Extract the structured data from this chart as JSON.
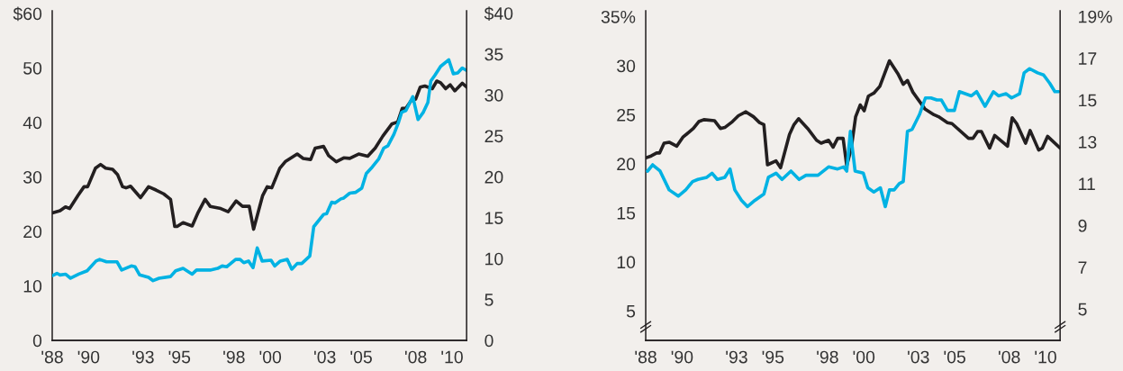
{
  "chart_data": [
    {
      "type": "line",
      "xlim": [
        1988,
        2010.8
      ],
      "xticks": [
        {
          "value": 1988,
          "label": "'88"
        },
        {
          "value": 1990,
          "label": "'90"
        },
        {
          "value": 1993,
          "label": "'93"
        },
        {
          "value": 1995,
          "label": "'95"
        },
        {
          "value": 1998,
          "label": "'98"
        },
        {
          "value": 2000,
          "label": "'00"
        },
        {
          "value": 2003,
          "label": "'03"
        },
        {
          "value": 2005,
          "label": "'05"
        },
        {
          "value": 2008,
          "label": "'08"
        },
        {
          "value": 2010,
          "label": "'10"
        }
      ],
      "ylim": [
        0,
        60.5
      ],
      "yticks": [
        0,
        10,
        20,
        30,
        40,
        50,
        {
          "value": 60,
          "label": "$60"
        }
      ],
      "y2lim": [
        0,
        40.3
      ],
      "y2ticks": [
        0,
        5,
        10,
        15,
        20,
        25,
        30,
        35,
        {
          "value": 40,
          "label": "$40"
        }
      ],
      "series": [
        {
          "color": "#00b2e3",
          "axis": "y2",
          "x": [
            1988.0,
            1988.26,
            1988.43,
            1988.73,
            1989.01,
            1989.46,
            1989.92,
            1990.41,
            1990.61,
            1990.99,
            1991.57,
            1991.82,
            1992.35,
            1992.56,
            1992.81,
            1993.3,
            1993.55,
            1993.88,
            1994.51,
            1994.79,
            1995.2,
            1995.7,
            1995.94,
            1996.69,
            1997.1,
            1997.35,
            1997.6,
            1998.09,
            1998.34,
            1998.54,
            1998.8,
            1999.05,
            1999.28,
            1999.55,
            2000.04,
            2000.24,
            2000.55,
            2000.93,
            2001.18,
            2001.48,
            2001.73,
            2002.17,
            2002.39,
            2002.93,
            2003.1,
            2003.38,
            2003.55,
            2003.88,
            2004.04,
            2004.37,
            2004.7,
            2005.03,
            2005.28,
            2005.61,
            2005.97,
            2006.24,
            2006.47,
            2006.8,
            2007.06,
            2007.23,
            2007.46,
            2007.84,
            2008.13,
            2008.42,
            2008.67,
            2008.83,
            2009.05,
            2009.37,
            2009.82,
            2010.07,
            2010.31,
            2010.56,
            2010.8
          ],
          "values": [
            7.9,
            8.2,
            8.0,
            8.1,
            7.6,
            8.1,
            8.5,
            9.7,
            9.9,
            9.6,
            9.6,
            8.6,
            9.1,
            9.0,
            8.0,
            7.7,
            7.3,
            7.6,
            7.8,
            8.5,
            8.8,
            8.1,
            8.6,
            8.6,
            8.8,
            9.1,
            9.0,
            9.9,
            9.9,
            9.5,
            9.7,
            8.9,
            11.3,
            9.7,
            9.8,
            9.1,
            9.7,
            9.9,
            8.7,
            9.4,
            9.4,
            10.3,
            13.9,
            15.4,
            15.5,
            16.9,
            16.8,
            17.3,
            17.4,
            18.0,
            18.1,
            18.6,
            20.4,
            21.2,
            22.2,
            23.5,
            23.8,
            25.2,
            26.7,
            27.9,
            28.1,
            29.8,
            27.0,
            27.9,
            29.1,
            31.7,
            32.4,
            33.5,
            34.3,
            32.6,
            32.7,
            33.3,
            33.0
          ]
        },
        {
          "color": "#231f20",
          "axis": "y",
          "x": [
            1988.0,
            1988.43,
            1988.73,
            1988.96,
            1989.42,
            1989.75,
            1989.95,
            1990.38,
            1990.66,
            1990.94,
            1991.32,
            1991.6,
            1991.87,
            1992.06,
            1992.31,
            1992.86,
            1993.3,
            1993.71,
            1994.13,
            1994.51,
            1994.74,
            1994.87,
            1995.2,
            1995.7,
            1996.03,
            1996.41,
            1996.69,
            1997.27,
            1997.68,
            1998.12,
            1998.47,
            1998.84,
            1999.08,
            1999.58,
            1999.83,
            2000.08,
            2000.52,
            2000.82,
            2001.48,
            2001.81,
            2002.22,
            2002.47,
            2002.93,
            2003.21,
            2003.63,
            2004.04,
            2004.37,
            2004.86,
            2005.36,
            2005.77,
            2006.19,
            2006.68,
            2007.01,
            2007.26,
            2007.46,
            2007.75,
            2008.0,
            2008.25,
            2008.5,
            2008.91,
            2009.16,
            2009.37,
            2009.65,
            2009.9,
            2010.15,
            2010.56,
            2010.8
          ],
          "values": [
            23.4,
            23.8,
            24.5,
            24.2,
            26.6,
            28.2,
            28.2,
            31.6,
            32.3,
            31.6,
            31.4,
            30.4,
            28.2,
            28.0,
            28.3,
            26.2,
            28.2,
            27.6,
            26.9,
            25.9,
            20.9,
            20.9,
            21.6,
            21.0,
            23.5,
            25.9,
            24.6,
            24.2,
            23.6,
            25.6,
            24.6,
            24.6,
            20.4,
            26.6,
            28.2,
            28.0,
            31.6,
            32.8,
            34.2,
            33.4,
            33.2,
            35.3,
            35.6,
            33.9,
            32.8,
            33.5,
            33.4,
            34.2,
            33.8,
            35.3,
            37.5,
            39.7,
            40.1,
            42.6,
            42.6,
            44.0,
            44.3,
            46.5,
            46.7,
            46.2,
            47.6,
            47.3,
            46.2,
            46.9,
            45.8,
            47.2,
            46.5
          ]
        }
      ]
    },
    {
      "type": "line",
      "xlim": [
        1988,
        2010.8
      ],
      "xticks": [
        {
          "value": 1988,
          "label": "'88"
        },
        {
          "value": 1990,
          "label": "'90"
        },
        {
          "value": 1993,
          "label": "'93"
        },
        {
          "value": 1995,
          "label": "'95"
        },
        {
          "value": 1998,
          "label": "'98"
        },
        {
          "value": 2000,
          "label": "'00"
        },
        {
          "value": 2003,
          "label": "'03"
        },
        {
          "value": 2005,
          "label": "'05"
        },
        {
          "value": 2008,
          "label": "'08"
        },
        {
          "value": 2010,
          "label": "'10"
        }
      ],
      "ylim": [
        2,
        35.6
      ],
      "yticks": [
        5,
        10,
        15,
        20,
        25,
        30,
        {
          "value": 35,
          "label": "35%"
        }
      ],
      "y2lim": [
        3.5,
        19.27
      ],
      "y2ticks": [
        5,
        7,
        9,
        11,
        13,
        15,
        17,
        {
          "value": 19,
          "label": "19%"
        }
      ],
      "series": [
        {
          "color": "#00b2e3",
          "axis": "y2",
          "x": [
            1988.1,
            1988.38,
            1988.79,
            1989.29,
            1989.79,
            1990.2,
            1990.58,
            1990.87,
            1991.36,
            1991.65,
            1991.94,
            1992.35,
            1992.64,
            1992.9,
            1993.27,
            1993.6,
            1994.01,
            1994.5,
            1994.75,
            1995.17,
            1995.5,
            1995.99,
            1996.44,
            1996.82,
            1997.48,
            1998.06,
            1998.56,
            1998.89,
            1999.06,
            1999.26,
            1999.52,
            1999.97,
            2000.22,
            2000.55,
            2000.91,
            2001.18,
            2001.41,
            2001.67,
            2001.95,
            2002.17,
            2002.4,
            2002.66,
            2003.06,
            2003.39,
            2003.69,
            2004.02,
            2004.27,
            2004.6,
            2004.98,
            2005.26,
            2005.92,
            2006.21,
            2006.67,
            2007.13,
            2007.41,
            2007.83,
            2008.13,
            2008.57,
            2008.82,
            2009.12,
            2009.56,
            2009.89,
            2010.23,
            2010.51,
            2010.72
          ],
          "values": [
            11.6,
            11.9,
            11.6,
            10.7,
            10.4,
            10.7,
            11.1,
            11.2,
            11.3,
            11.5,
            11.2,
            11.3,
            11.7,
            10.7,
            10.2,
            9.9,
            10.2,
            10.5,
            11.3,
            11.5,
            11.2,
            11.6,
            11.2,
            11.4,
            11.4,
            11.8,
            11.7,
            11.8,
            11.6,
            13.5,
            11.6,
            11.5,
            10.8,
            10.6,
            10.8,
            9.9,
            10.7,
            10.7,
            11.0,
            11.1,
            13.5,
            13.6,
            14.3,
            15.1,
            15.1,
            15.0,
            15.0,
            14.5,
            14.5,
            15.4,
            15.2,
            15.4,
            14.7,
            15.4,
            15.2,
            15.3,
            15.1,
            15.3,
            16.3,
            16.5,
            16.3,
            16.2,
            15.8,
            15.4,
            15.4
          ]
        },
        {
          "color": "#231f20",
          "axis": "y",
          "x": [
            1988.0,
            1988.3,
            1988.6,
            1988.76,
            1989.01,
            1989.29,
            1989.71,
            1990.04,
            1990.62,
            1990.92,
            1991.2,
            1991.78,
            1992.11,
            1992.35,
            1992.77,
            1993.1,
            1993.51,
            1993.93,
            1994.26,
            1994.5,
            1994.7,
            1995.17,
            1995.42,
            1995.91,
            1996.16,
            1996.41,
            1996.91,
            1997.4,
            1997.65,
            1998.06,
            1998.31,
            1998.56,
            1998.86,
            1999.06,
            1999.31,
            1999.55,
            1999.8,
            2000.02,
            2000.25,
            2000.55,
            2000.88,
            2001.41,
            2001.87,
            2002.17,
            2002.4,
            2002.7,
            2003.36,
            2003.86,
            2004.11,
            2004.6,
            2004.85,
            2005.76,
            2006.01,
            2006.26,
            2006.47,
            2006.92,
            2007.2,
            2007.91,
            2008.16,
            2008.41,
            2008.9,
            2009.15,
            2009.62,
            2009.82,
            2010.11,
            2010.8
          ],
          "values": [
            20.6,
            20.8,
            21.1,
            21.1,
            22.1,
            22.2,
            21.8,
            22.7,
            23.6,
            24.3,
            24.5,
            24.4,
            23.6,
            23.7,
            24.3,
            24.9,
            25.3,
            24.8,
            24.2,
            24.0,
            19.9,
            20.3,
            19.6,
            23.0,
            24.0,
            24.6,
            23.6,
            22.4,
            22.1,
            22.4,
            21.7,
            22.6,
            22.6,
            19.8,
            21.6,
            24.8,
            26.0,
            25.4,
            26.9,
            27.2,
            27.9,
            30.5,
            29.2,
            28.1,
            28.5,
            27.3,
            25.6,
            25.0,
            24.8,
            24.2,
            24.1,
            22.6,
            22.6,
            23.3,
            23.3,
            21.6,
            22.9,
            21.8,
            24.7,
            24.1,
            22.1,
            23.4,
            21.4,
            21.6,
            22.8,
            21.6
          ]
        }
      ]
    }
  ]
}
